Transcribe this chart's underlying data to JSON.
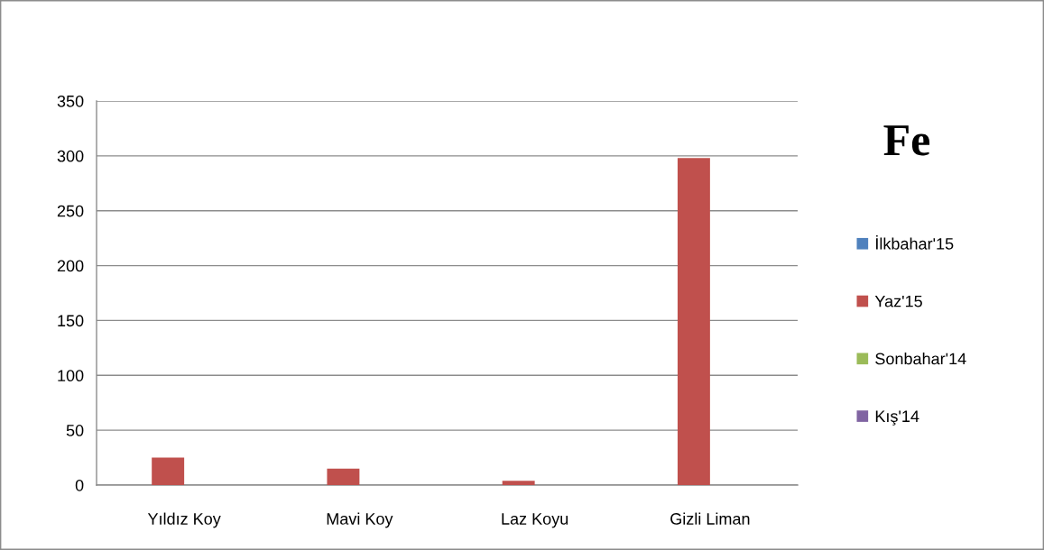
{
  "chart_data": {
    "type": "bar",
    "title": "Fe",
    "categories": [
      "Yıldız Koy",
      "Mavi Koy",
      "Laz Koyu",
      "Gizli Liman"
    ],
    "series": [
      {
        "name": "İlkbahar'15",
        "color": "#4f81bd",
        "values": [
          null,
          null,
          null,
          null
        ]
      },
      {
        "name": "Yaz'15",
        "color": "#c0504d",
        "values": [
          25,
          15,
          4,
          298
        ]
      },
      {
        "name": "Sonbahar'14",
        "color": "#9bbb59",
        "values": [
          null,
          null,
          null,
          null
        ]
      },
      {
        "name": "Kış'14",
        "color": "#8064a2",
        "values": [
          null,
          null,
          null,
          null
        ]
      }
    ],
    "ylim": [
      0,
      350
    ],
    "yticks": [
      0,
      50,
      100,
      150,
      200,
      250,
      300,
      350
    ],
    "grid": "y",
    "legend": "right"
  }
}
